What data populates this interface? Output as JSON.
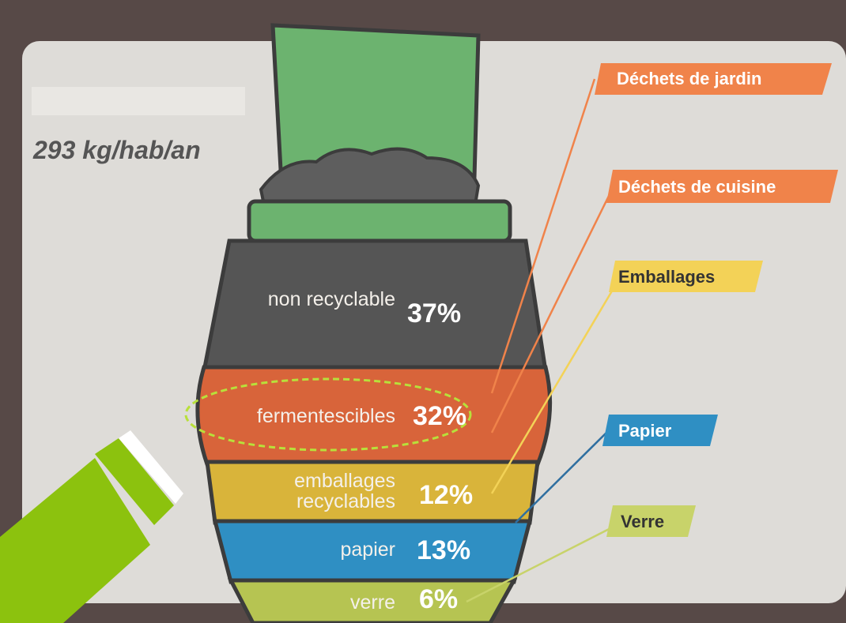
{
  "headline": "293 kg/hab/an",
  "segments": [
    {
      "label": "non recyclable",
      "percent": "37%"
    },
    {
      "label": "fermentescibles",
      "percent": "32%"
    },
    {
      "label": "emballages recyclables",
      "percent": "12%"
    },
    {
      "label": "papier",
      "percent": "13%"
    },
    {
      "label": "verre",
      "percent": "6%"
    }
  ],
  "tags": [
    "Déchets de jardin",
    "Déchets de cuisine",
    "Emballages",
    "Papier",
    "Verre"
  ]
}
